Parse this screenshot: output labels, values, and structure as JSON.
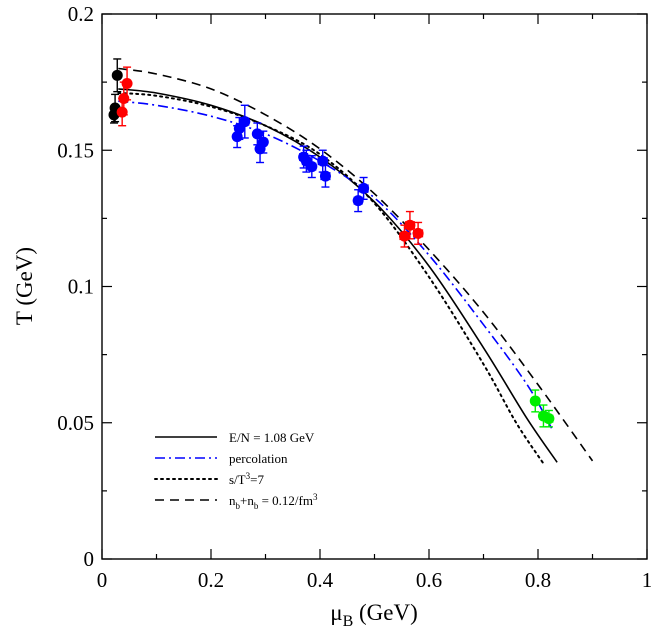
{
  "chart_data": {
    "type": "scatter",
    "title": "",
    "xlabel": {
      "main": "μ",
      "sub": "B",
      "unit": " (GeV)"
    },
    "ylabel": "T (GeV)",
    "xlim": [
      0,
      1.0
    ],
    "ylim": [
      0,
      0.2
    ],
    "x_ticks": [
      0,
      0.2,
      0.4,
      0.6,
      0.8,
      1
    ],
    "x_tick_labels": [
      "0",
      "0.2",
      "0.4",
      "0.6",
      "0.8",
      "1"
    ],
    "y_ticks": [
      0,
      0.05,
      0.1,
      0.15,
      0.2
    ],
    "y_tick_labels": [
      "0",
      "0.05",
      "0.1",
      "0.15",
      "0.2"
    ],
    "grid": false,
    "legend_placement": "bottom-left",
    "legend": [
      {
        "text": "E/N = 1.08 GeV",
        "color": "#000000",
        "style": "solid"
      },
      {
        "text": "percolation",
        "color": "#0000ff",
        "style": "dashdot"
      },
      {
        "text_parts": [
          [
            "s/T",
            ""
          ],
          [
            "3",
            "sup"
          ],
          [
            "=7",
            ""
          ]
        ],
        "color": "#000000",
        "style": "dotted"
      },
      {
        "text_parts": [
          [
            "n",
            ""
          ],
          [
            "b",
            "sub"
          ],
          [
            "+n",
            ""
          ],
          [
            "b",
            "sub"
          ],
          [
            " = 0.12/fm",
            ""
          ],
          [
            "3",
            "sup"
          ]
        ],
        "color": "#000000",
        "style": "dashed"
      }
    ],
    "curves": [
      {
        "style": "solid",
        "color": "#000000",
        "points": [
          [
            0.03,
            0.1725
          ],
          [
            0.1,
            0.171
          ],
          [
            0.2,
            0.1665
          ],
          [
            0.3,
            0.159
          ],
          [
            0.4,
            0.1475
          ],
          [
            0.5,
            0.131
          ],
          [
            0.6,
            0.1075
          ],
          [
            0.7,
            0.0775
          ],
          [
            0.78,
            0.0515
          ],
          [
            0.835,
            0.0355
          ]
        ]
      },
      {
        "style": "dashdot",
        "color": "#0000ff",
        "points": [
          [
            0.03,
            0.168
          ],
          [
            0.1,
            0.1665
          ],
          [
            0.2,
            0.1625
          ],
          [
            0.3,
            0.156
          ],
          [
            0.4,
            0.146
          ],
          [
            0.5,
            0.1325
          ],
          [
            0.6,
            0.1115
          ],
          [
            0.7,
            0.086
          ],
          [
            0.78,
            0.064
          ],
          [
            0.825,
            0.048
          ]
        ]
      },
      {
        "style": "dotted",
        "color": "#000000",
        "points": [
          [
            0.03,
            0.171
          ],
          [
            0.1,
            0.17
          ],
          [
            0.2,
            0.166
          ],
          [
            0.3,
            0.159
          ],
          [
            0.4,
            0.1485
          ],
          [
            0.5,
            0.1305
          ],
          [
            0.6,
            0.1035
          ],
          [
            0.7,
            0.0715
          ],
          [
            0.76,
            0.05
          ],
          [
            0.81,
            0.035
          ]
        ]
      },
      {
        "style": "dashed",
        "color": "#000000",
        "points": [
          [
            0.03,
            0.18
          ],
          [
            0.1,
            0.178
          ],
          [
            0.2,
            0.1725
          ],
          [
            0.3,
            0.163
          ],
          [
            0.4,
            0.1505
          ],
          [
            0.5,
            0.134
          ],
          [
            0.6,
            0.1135
          ],
          [
            0.7,
            0.0905
          ],
          [
            0.8,
            0.064
          ],
          [
            0.9,
            0.036
          ]
        ]
      }
    ],
    "series": [
      {
        "color": "#000000",
        "points": [
          {
            "x": 0.022,
            "y": 0.163,
            "xerr": 0.004,
            "yerr": 0.003
          },
          {
            "x": 0.024,
            "y": 0.1655,
            "xerr": 0.004,
            "yerr": 0.005
          },
          {
            "x": 0.028,
            "y": 0.1775,
            "xerr": 0.004,
            "yerr": 0.006
          }
        ]
      },
      {
        "color": "#ff0000",
        "points": [
          {
            "x": 0.037,
            "y": 0.164,
            "xerr": 0.005,
            "yerr": 0.005
          },
          {
            "x": 0.04,
            "y": 0.169,
            "xerr": 0.005,
            "yerr": 0.006
          },
          {
            "x": 0.046,
            "y": 0.1745,
            "xerr": 0.006,
            "yerr": 0.006
          },
          {
            "x": 0.555,
            "y": 0.1185,
            "xerr": 0.008,
            "yerr": 0.004
          },
          {
            "x": 0.565,
            "y": 0.1225,
            "xerr": 0.008,
            "yerr": 0.005
          },
          {
            "x": 0.58,
            "y": 0.1195,
            "xerr": 0.008,
            "yerr": 0.004
          }
        ]
      },
      {
        "color": "#0000ff",
        "points": [
          {
            "x": 0.248,
            "y": 0.155,
            "xerr": 0.006,
            "yerr": 0.004
          },
          {
            "x": 0.252,
            "y": 0.158,
            "xerr": 0.006,
            "yerr": 0.004
          },
          {
            "x": 0.262,
            "y": 0.1605,
            "xerr": 0.007,
            "yerr": 0.006
          },
          {
            "x": 0.285,
            "y": 0.156,
            "xerr": 0.006,
            "yerr": 0.004
          },
          {
            "x": 0.29,
            "y": 0.1505,
            "xerr": 0.006,
            "yerr": 0.005
          },
          {
            "x": 0.296,
            "y": 0.153,
            "xerr": 0.006,
            "yerr": 0.004
          },
          {
            "x": 0.37,
            "y": 0.1475,
            "xerr": 0.007,
            "yerr": 0.004
          },
          {
            "x": 0.375,
            "y": 0.146,
            "xerr": 0.007,
            "yerr": 0.004
          },
          {
            "x": 0.385,
            "y": 0.144,
            "xerr": 0.007,
            "yerr": 0.004
          },
          {
            "x": 0.405,
            "y": 0.146,
            "xerr": 0.008,
            "yerr": 0.004
          },
          {
            "x": 0.41,
            "y": 0.1405,
            "xerr": 0.008,
            "yerr": 0.004
          },
          {
            "x": 0.47,
            "y": 0.1315,
            "xerr": 0.007,
            "yerr": 0.004
          },
          {
            "x": 0.48,
            "y": 0.136,
            "xerr": 0.008,
            "yerr": 0.004
          }
        ]
      },
      {
        "color": "#00ee00",
        "points": [
          {
            "x": 0.795,
            "y": 0.058,
            "xerr": 0.006,
            "yerr": 0.004
          },
          {
            "x": 0.81,
            "y": 0.0525,
            "xerr": 0.007,
            "yerr": 0.004
          },
          {
            "x": 0.82,
            "y": 0.0515,
            "xerr": 0.007,
            "yerr": 0.003
          }
        ]
      }
    ]
  }
}
